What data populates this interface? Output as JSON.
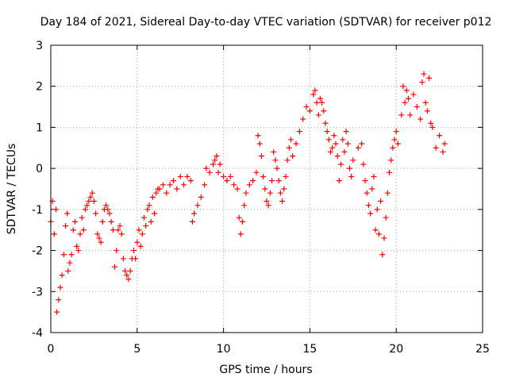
{
  "chart_data": {
    "type": "scatter",
    "title": "Day 184 of 2021, Sidereal Day-to-day VTEC variation (SDTVAR) for receiver p012",
    "xlabel": "GPS time / hours",
    "ylabel": "SDTVAR / TECUs",
    "xlim": [
      0,
      25
    ],
    "ylim": [
      -4,
      3
    ],
    "xticks": [
      0,
      5,
      10,
      15,
      20,
      25
    ],
    "yticks": [
      -4,
      -3,
      -2,
      -1,
      0,
      1,
      2,
      3
    ],
    "grid": true,
    "series_color": "#ff0000",
    "marker": "plus",
    "series": [
      {
        "name": "SDTVAR p012",
        "points": [
          [
            0.0,
            -1.3
          ],
          [
            0.1,
            -0.8
          ],
          [
            0.2,
            -1.6
          ],
          [
            0.3,
            -1.0
          ],
          [
            0.35,
            -3.5
          ],
          [
            0.45,
            -3.2
          ],
          [
            0.55,
            -2.9
          ],
          [
            0.65,
            -2.6
          ],
          [
            0.75,
            -2.1
          ],
          [
            0.85,
            -1.4
          ],
          [
            0.95,
            -1.1
          ],
          [
            1.0,
            -2.5
          ],
          [
            1.1,
            -2.3
          ],
          [
            1.2,
            -2.1
          ],
          [
            1.3,
            -1.5
          ],
          [
            1.4,
            -1.3
          ],
          [
            1.5,
            -1.9
          ],
          [
            1.6,
            -2.0
          ],
          [
            1.7,
            -1.6
          ],
          [
            1.8,
            -1.2
          ],
          [
            1.9,
            -1.5
          ],
          [
            2.0,
            -1.0
          ],
          [
            2.1,
            -0.9
          ],
          [
            2.2,
            -0.8
          ],
          [
            2.3,
            -0.7
          ],
          [
            2.4,
            -0.6
          ],
          [
            2.5,
            -0.8
          ],
          [
            2.6,
            -1.1
          ],
          [
            2.7,
            -1.6
          ],
          [
            2.8,
            -1.7
          ],
          [
            2.9,
            -1.8
          ],
          [
            3.0,
            -1.3
          ],
          [
            3.1,
            -1.0
          ],
          [
            3.2,
            -0.9
          ],
          [
            3.3,
            -1.0
          ],
          [
            3.4,
            -1.1
          ],
          [
            3.5,
            -1.3
          ],
          [
            3.6,
            -1.5
          ],
          [
            3.7,
            -2.4
          ],
          [
            3.8,
            -2.0
          ],
          [
            3.9,
            -1.5
          ],
          [
            4.0,
            -1.4
          ],
          [
            4.1,
            -1.6
          ],
          [
            4.2,
            -2.2
          ],
          [
            4.3,
            -2.5
          ],
          [
            4.4,
            -2.6
          ],
          [
            4.5,
            -2.7
          ],
          [
            4.6,
            -2.5
          ],
          [
            4.7,
            -2.2
          ],
          [
            4.8,
            -2.0
          ],
          [
            4.9,
            -2.2
          ],
          [
            5.0,
            -1.8
          ],
          [
            5.1,
            -1.5
          ],
          [
            5.2,
            -1.9
          ],
          [
            5.3,
            -1.6
          ],
          [
            5.4,
            -1.2
          ],
          [
            5.5,
            -1.4
          ],
          [
            5.6,
            -1.0
          ],
          [
            5.7,
            -0.9
          ],
          [
            5.8,
            -1.3
          ],
          [
            5.9,
            -0.7
          ],
          [
            6.0,
            -1.1
          ],
          [
            6.1,
            -0.6
          ],
          [
            6.2,
            -0.5
          ],
          [
            6.3,
            -0.5
          ],
          [
            6.5,
            -0.4
          ],
          [
            6.7,
            -0.6
          ],
          [
            6.9,
            -0.4
          ],
          [
            7.1,
            -0.3
          ],
          [
            7.3,
            -0.5
          ],
          [
            7.5,
            -0.2
          ],
          [
            7.7,
            -0.4
          ],
          [
            7.9,
            -0.2
          ],
          [
            8.1,
            -0.3
          ],
          [
            8.2,
            -1.3
          ],
          [
            8.3,
            -1.1
          ],
          [
            8.5,
            -0.9
          ],
          [
            8.7,
            -0.7
          ],
          [
            8.9,
            -0.4
          ],
          [
            9.0,
            0.0
          ],
          [
            9.2,
            -0.1
          ],
          [
            9.4,
            0.1
          ],
          [
            9.5,
            0.2
          ],
          [
            9.6,
            0.3
          ],
          [
            9.7,
            -0.1
          ],
          [
            9.8,
            0.1
          ],
          [
            10.0,
            -0.2
          ],
          [
            10.2,
            -0.3
          ],
          [
            10.4,
            -0.2
          ],
          [
            10.6,
            -0.4
          ],
          [
            10.8,
            -0.5
          ],
          [
            10.9,
            -1.2
          ],
          [
            11.0,
            -1.6
          ],
          [
            11.1,
            -1.3
          ],
          [
            11.2,
            -0.9
          ],
          [
            11.3,
            -0.6
          ],
          [
            11.5,
            -0.4
          ],
          [
            11.7,
            -0.3
          ],
          [
            11.9,
            -0.1
          ],
          [
            12.0,
            0.8
          ],
          [
            12.1,
            0.6
          ],
          [
            12.2,
            0.3
          ],
          [
            12.3,
            -0.2
          ],
          [
            12.4,
            -0.5
          ],
          [
            12.5,
            -0.8
          ],
          [
            12.6,
            -0.9
          ],
          [
            12.7,
            -0.6
          ],
          [
            12.8,
            -0.3
          ],
          [
            12.9,
            0.4
          ],
          [
            13.0,
            0.2
          ],
          [
            13.1,
            0.0
          ],
          [
            13.2,
            -0.3
          ],
          [
            13.3,
            -0.6
          ],
          [
            13.4,
            -0.8
          ],
          [
            13.5,
            -0.5
          ],
          [
            13.6,
            -0.2
          ],
          [
            13.7,
            0.2
          ],
          [
            13.8,
            0.5
          ],
          [
            13.9,
            0.7
          ],
          [
            14.0,
            0.3
          ],
          [
            14.2,
            0.6
          ],
          [
            14.4,
            0.9
          ],
          [
            14.6,
            1.2
          ],
          [
            14.8,
            1.5
          ],
          [
            15.0,
            1.4
          ],
          [
            15.2,
            1.8
          ],
          [
            15.3,
            1.9
          ],
          [
            15.4,
            1.6
          ],
          [
            15.5,
            1.3
          ],
          [
            15.6,
            1.7
          ],
          [
            15.7,
            1.6
          ],
          [
            15.8,
            1.4
          ],
          [
            15.9,
            1.1
          ],
          [
            16.0,
            0.9
          ],
          [
            16.1,
            0.7
          ],
          [
            16.2,
            0.4
          ],
          [
            16.3,
            0.5
          ],
          [
            16.4,
            0.8
          ],
          [
            16.5,
            0.6
          ],
          [
            16.6,
            0.3
          ],
          [
            16.7,
            -0.3
          ],
          [
            16.8,
            0.1
          ],
          [
            16.9,
            0.7
          ],
          [
            17.0,
            0.4
          ],
          [
            17.1,
            0.9
          ],
          [
            17.2,
            0.6
          ],
          [
            17.3,
            0.0
          ],
          [
            17.4,
            -0.2
          ],
          [
            17.5,
            0.2
          ],
          [
            17.8,
            0.5
          ],
          [
            18.0,
            0.6
          ],
          [
            18.1,
            0.1
          ],
          [
            18.2,
            -0.3
          ],
          [
            18.3,
            -0.6
          ],
          [
            18.4,
            -0.9
          ],
          [
            18.5,
            -1.1
          ],
          [
            18.6,
            -0.5
          ],
          [
            18.7,
            -0.2
          ],
          [
            18.8,
            -1.5
          ],
          [
            18.9,
            -1.0
          ],
          [
            19.0,
            -1.6
          ],
          [
            19.1,
            -0.8
          ],
          [
            19.2,
            -2.1
          ],
          [
            19.3,
            -1.7
          ],
          [
            19.4,
            -1.2
          ],
          [
            19.5,
            -0.6
          ],
          [
            19.6,
            -0.1
          ],
          [
            19.7,
            0.2
          ],
          [
            19.8,
            0.5
          ],
          [
            19.9,
            0.7
          ],
          [
            20.0,
            0.9
          ],
          [
            20.1,
            0.6
          ],
          [
            20.3,
            1.3
          ],
          [
            20.4,
            2.0
          ],
          [
            20.5,
            1.6
          ],
          [
            20.6,
            1.9
          ],
          [
            20.7,
            1.7
          ],
          [
            20.8,
            1.3
          ],
          [
            21.0,
            1.8
          ],
          [
            21.2,
            1.5
          ],
          [
            21.4,
            1.2
          ],
          [
            21.5,
            2.1
          ],
          [
            21.6,
            2.3
          ],
          [
            21.7,
            1.6
          ],
          [
            21.8,
            1.4
          ],
          [
            21.9,
            2.2
          ],
          [
            22.0,
            1.1
          ],
          [
            22.1,
            1.0
          ],
          [
            22.3,
            0.5
          ],
          [
            22.5,
            0.8
          ],
          [
            22.7,
            0.4
          ],
          [
            22.8,
            0.6
          ]
        ]
      }
    ]
  }
}
